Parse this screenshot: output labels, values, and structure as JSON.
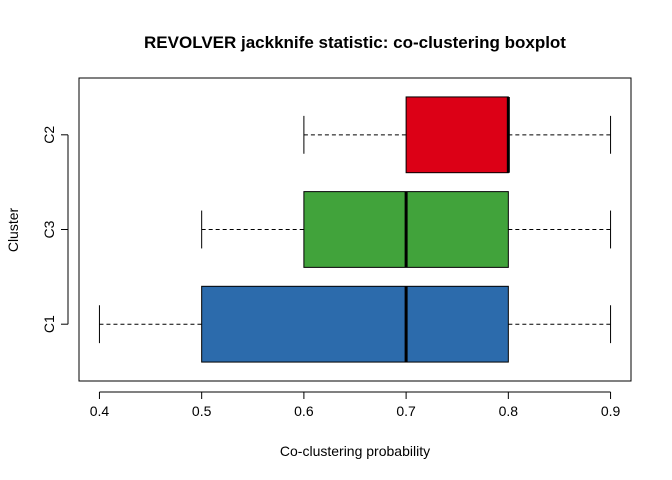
{
  "chart_data": {
    "type": "boxplot",
    "orientation": "horizontal",
    "title": "REVOLVER jackknife statistic: co-clustering boxplot",
    "xlabel": "Co-clustering probability",
    "ylabel": "Cluster",
    "xlim": [
      0.38,
      0.92
    ],
    "x_ticks": [
      "0.4",
      "0.5",
      "0.6",
      "0.7",
      "0.8",
      "0.9"
    ],
    "categories": [
      "C1",
      "C3",
      "C2"
    ],
    "boxes": [
      {
        "label": "C1",
        "min": 0.4,
        "q1": 0.5,
        "median": 0.7,
        "q3": 0.8,
        "max": 0.9,
        "color": "#2C6BAC"
      },
      {
        "label": "C3",
        "min": 0.5,
        "q1": 0.6,
        "median": 0.7,
        "q3": 0.8,
        "max": 0.9,
        "color": "#41A33B"
      },
      {
        "label": "C2",
        "min": 0.6,
        "q1": 0.7,
        "median": 0.8,
        "q3": 0.8,
        "max": 0.9,
        "color": "#DC0016"
      }
    ],
    "grid": false,
    "legend": "none"
  }
}
